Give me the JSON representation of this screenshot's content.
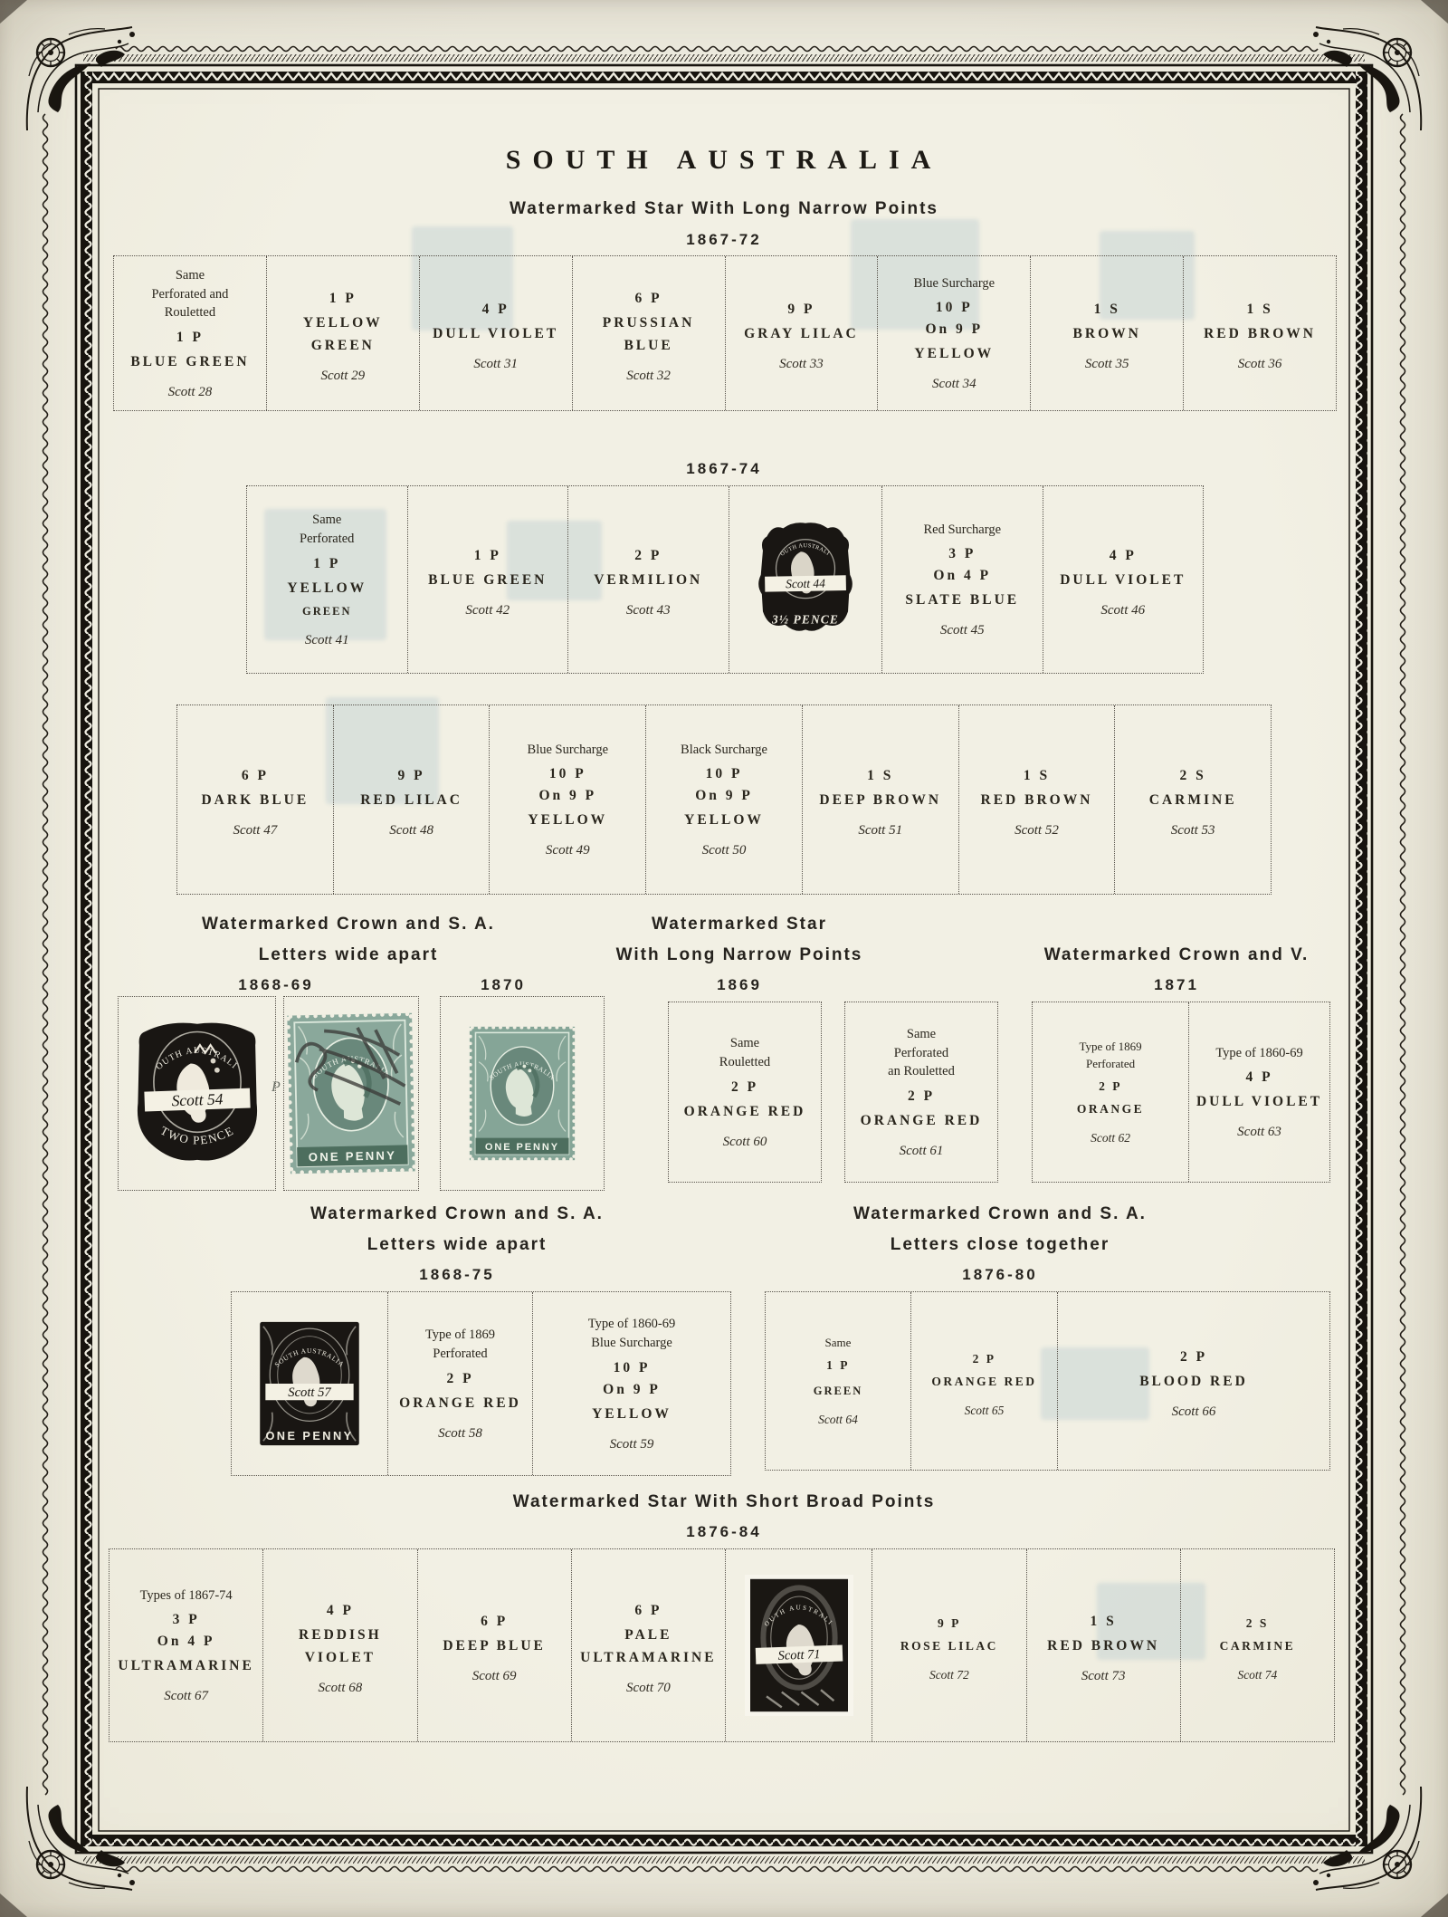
{
  "page": {
    "title": "SOUTH AUSTRALIA",
    "pencil_note": "P"
  },
  "sections": {
    "s1": {
      "heading": "Watermarked Star With Long Narrow Points",
      "years": "1867-72"
    },
    "s2": {
      "years": "1867-74"
    },
    "s3a": {
      "line1": "Watermarked Crown and S. A.",
      "line2": "Letters wide apart",
      "years": "1868-69",
      "years2": "1870"
    },
    "s3b": {
      "line1": "Watermarked Star",
      "line2": "With Long Narrow Points",
      "years": "1869"
    },
    "s3c": {
      "line1": "Watermarked Crown and V.",
      "years": "1871"
    },
    "s4a": {
      "line1": "Watermarked Crown and S. A.",
      "line2": "Letters wide apart",
      "years": "1868-75"
    },
    "s4b": {
      "line1": "Watermarked Crown and S. A.",
      "line2": "Letters close together",
      "years": "1876-80"
    },
    "s5": {
      "heading": "Watermarked Star With Short Broad Points",
      "years": "1876-84"
    }
  },
  "rows": {
    "row1": [
      {
        "lines": [
          {
            "k": "n",
            "t": "Same"
          },
          {
            "k": "n",
            "t": "Perforated and"
          },
          {
            "k": "n",
            "t": "Rouletted"
          },
          {
            "k": "d",
            "t": "1 P"
          },
          {
            "k": "c",
            "t": "BLUE GREEN"
          },
          {
            "k": "s",
            "t": "Scott 28"
          }
        ]
      },
      {
        "lines": [
          {
            "k": "d",
            "t": "1 P"
          },
          {
            "k": "c",
            "t": "YELLOW"
          },
          {
            "k": "c",
            "t": "GREEN"
          },
          {
            "k": "s",
            "t": "Scott 29"
          }
        ]
      },
      {
        "lines": [
          {
            "k": "d",
            "t": "4 P"
          },
          {
            "k": "c",
            "t": "DULL VIOLET"
          },
          {
            "k": "s",
            "t": "Scott 31"
          }
        ]
      },
      {
        "lines": [
          {
            "k": "d",
            "t": "6 P"
          },
          {
            "k": "c",
            "t": "PRUSSIAN"
          },
          {
            "k": "c",
            "t": "BLUE"
          },
          {
            "k": "s",
            "t": "Scott 32"
          }
        ]
      },
      {
        "lines": [
          {
            "k": "d",
            "t": "9 P"
          },
          {
            "k": "c",
            "t": "GRAY LILAC"
          },
          {
            "k": "s",
            "t": "Scott 33"
          }
        ]
      },
      {
        "lines": [
          {
            "k": "n",
            "t": "Blue Surcharge"
          },
          {
            "k": "d",
            "t": "10 P"
          },
          {
            "k": "d",
            "t": "On 9 P"
          },
          {
            "k": "c",
            "t": "YELLOW"
          },
          {
            "k": "s",
            "t": "Scott 34"
          }
        ]
      },
      {
        "lines": [
          {
            "k": "d",
            "t": "1 S"
          },
          {
            "k": "c",
            "t": "BROWN"
          },
          {
            "k": "s",
            "t": "Scott 35"
          }
        ]
      },
      {
        "lines": [
          {
            "k": "d",
            "t": "1 S"
          },
          {
            "k": "c",
            "t": "RED BROWN"
          },
          {
            "k": "s",
            "t": "Scott 36"
          }
        ]
      }
    ],
    "row2": [
      {
        "lines": [
          {
            "k": "n",
            "t": "Same"
          },
          {
            "k": "n",
            "t": "Perforated"
          },
          {
            "k": "d",
            "t": "1 P"
          },
          {
            "k": "c",
            "t": "YELLOW"
          },
          {
            "k": "sm",
            "t": "GREEN"
          },
          {
            "k": "s",
            "t": "Scott 41"
          }
        ]
      },
      {
        "lines": [
          {
            "k": "d",
            "t": "1 P"
          },
          {
            "k": "c",
            "t": "BLUE GREEN"
          },
          {
            "k": "s",
            "t": "Scott 42"
          }
        ]
      },
      {
        "lines": [
          {
            "k": "d",
            "t": "2 P"
          },
          {
            "k": "c",
            "t": "VERMILION"
          },
          {
            "k": "s",
            "t": "Scott 43"
          }
        ]
      },
      {
        "stamp": "scott44"
      },
      {
        "lines": [
          {
            "k": "n",
            "t": "Red Surcharge"
          },
          {
            "k": "d",
            "t": "3 P"
          },
          {
            "k": "d",
            "t": "On 4 P"
          },
          {
            "k": "c",
            "t": "SLATE BLUE"
          },
          {
            "k": "s",
            "t": "Scott 45"
          }
        ]
      },
      {
        "lines": [
          {
            "k": "d",
            "t": "4 P"
          },
          {
            "k": "c",
            "t": "DULL VIOLET"
          },
          {
            "k": "s",
            "t": "Scott 46"
          }
        ]
      }
    ],
    "row3": [
      {
        "lines": [
          {
            "k": "d",
            "t": "6 P"
          },
          {
            "k": "c",
            "t": "DARK BLUE"
          },
          {
            "k": "s",
            "t": "Scott 47"
          }
        ]
      },
      {
        "lines": [
          {
            "k": "d",
            "t": "9 P"
          },
          {
            "k": "c",
            "t": "RED LILAC"
          },
          {
            "k": "s",
            "t": "Scott 48"
          }
        ]
      },
      {
        "lines": [
          {
            "k": "n",
            "t": "Blue Surcharge"
          },
          {
            "k": "d",
            "t": "10 P"
          },
          {
            "k": "d",
            "t": "On 9 P"
          },
          {
            "k": "c",
            "t": "YELLOW"
          },
          {
            "k": "s",
            "t": "Scott 49"
          }
        ]
      },
      {
        "lines": [
          {
            "k": "n",
            "t": "Black Surcharge"
          },
          {
            "k": "d",
            "t": "10 P"
          },
          {
            "k": "d",
            "t": "On 9 P"
          },
          {
            "k": "c",
            "t": "YELLOW"
          },
          {
            "k": "s",
            "t": "Scott 50"
          }
        ]
      },
      {
        "lines": [
          {
            "k": "d",
            "t": "1 S"
          },
          {
            "k": "c",
            "t": "DEEP BROWN"
          },
          {
            "k": "s",
            "t": "Scott 51"
          }
        ]
      },
      {
        "lines": [
          {
            "k": "d",
            "t": "1 S"
          },
          {
            "k": "c",
            "t": "RED BROWN"
          },
          {
            "k": "s",
            "t": "Scott 52"
          }
        ]
      },
      {
        "lines": [
          {
            "k": "d",
            "t": "2 S"
          },
          {
            "k": "c",
            "t": "CARMINE"
          },
          {
            "k": "s",
            "t": "Scott 53"
          }
        ]
      }
    ],
    "rowA": [
      {
        "stamp": "scott54"
      },
      {
        "stamp": "green_cancelled"
      },
      {
        "stamp": "green_clean"
      }
    ],
    "rowB": [
      {
        "lines": [
          {
            "k": "n",
            "t": "Same"
          },
          {
            "k": "n",
            "t": "Rouletted"
          },
          {
            "k": "d",
            "t": "2 P"
          },
          {
            "k": "c",
            "t": "ORANGE RED"
          },
          {
            "k": "s",
            "t": "Scott 60"
          }
        ]
      },
      {
        "lines": [
          {
            "k": "n",
            "t": "Same"
          },
          {
            "k": "n",
            "t": "Perforated"
          },
          {
            "k": "n",
            "t": "an Rouletted"
          },
          {
            "k": "d",
            "t": "2 P"
          },
          {
            "k": "c",
            "t": "ORANGE RED"
          },
          {
            "k": "s",
            "t": "Scott 61"
          }
        ]
      }
    ],
    "rowC": [
      {
        "small": true,
        "lines": [
          {
            "k": "n",
            "t": "Type of 1869"
          },
          {
            "k": "n",
            "t": "Perforated"
          },
          {
            "k": "d",
            "t": "2 P"
          },
          {
            "k": "c",
            "t": "ORANGE"
          },
          {
            "k": "s",
            "t": "Scott 62"
          }
        ]
      },
      {
        "lines": [
          {
            "k": "n",
            "t": "Type of 1860-69"
          },
          {
            "k": "d",
            "t": "4 P"
          },
          {
            "k": "c",
            "t": "DULL VIOLET"
          },
          {
            "k": "s",
            "t": "Scott 63"
          }
        ]
      }
    ],
    "rowD": [
      {
        "stamp": "scott57"
      },
      {
        "lines": [
          {
            "k": "n",
            "t": "Type of 1869"
          },
          {
            "k": "n",
            "t": "Perforated"
          },
          {
            "k": "d",
            "t": "2 P"
          },
          {
            "k": "c",
            "t": "ORANGE RED"
          },
          {
            "k": "s",
            "t": "Scott 58"
          }
        ]
      },
      {
        "lines": [
          {
            "k": "n",
            "t": "Type of 1860-69"
          },
          {
            "k": "n",
            "t": "Blue Surcharge"
          },
          {
            "k": "d",
            "t": "10 P"
          },
          {
            "k": "d",
            "t": "On 9 P"
          },
          {
            "k": "c",
            "t": "YELLOW"
          },
          {
            "k": "s",
            "t": "Scott 59"
          }
        ]
      }
    ],
    "rowE": [
      {
        "small": true,
        "lines": [
          {
            "k": "n",
            "t": "Same"
          },
          {
            "k": "d",
            "t": "1 P"
          },
          {
            "k": "sm",
            "t": "GREEN"
          },
          {
            "k": "s",
            "t": "Scott 64"
          }
        ]
      },
      {
        "small": true,
        "lines": [
          {
            "k": "d",
            "t": "2 P"
          },
          {
            "k": "c",
            "t": "ORANGE RED"
          },
          {
            "k": "s",
            "t": "Scott 65"
          }
        ]
      },
      {
        "lines": [
          {
            "k": "d",
            "t": "2 P"
          },
          {
            "k": "c",
            "t": "BLOOD RED"
          },
          {
            "k": "s",
            "t": "Scott 66"
          }
        ]
      }
    ],
    "row5": [
      {
        "lines": [
          {
            "k": "n",
            "t": "Types of 1867-74"
          },
          {
            "k": "d",
            "t": "3 P"
          },
          {
            "k": "d",
            "t": "On 4 P"
          },
          {
            "k": "c",
            "t": "ULTRAMARINE"
          },
          {
            "k": "s",
            "t": "Scott 67"
          }
        ]
      },
      {
        "lines": [
          {
            "k": "d",
            "t": "4 P"
          },
          {
            "k": "c",
            "t": "REDDISH"
          },
          {
            "k": "c",
            "t": "VIOLET"
          },
          {
            "k": "s",
            "t": "Scott 68"
          }
        ]
      },
      {
        "lines": [
          {
            "k": "d",
            "t": "6 P"
          },
          {
            "k": "c",
            "t": "DEEP BLUE"
          },
          {
            "k": "s",
            "t": "Scott 69"
          }
        ]
      },
      {
        "lines": [
          {
            "k": "d",
            "t": "6 P"
          },
          {
            "k": "c",
            "t": "PALE"
          },
          {
            "k": "c",
            "t": "ULTRAMARINE"
          },
          {
            "k": "s",
            "t": "Scott 70"
          }
        ]
      },
      {
        "stamp": "scott71"
      },
      {
        "small": true,
        "lines": [
          {
            "k": "d",
            "t": "9 P"
          },
          {
            "k": "c",
            "t": "ROSE LILAC"
          },
          {
            "k": "s",
            "t": "Scott 72"
          }
        ]
      },
      {
        "lines": [
          {
            "k": "d",
            "t": "1 S"
          },
          {
            "k": "c",
            "t": "RED BROWN"
          },
          {
            "k": "s",
            "t": "Scott 73"
          }
        ]
      },
      {
        "small": true,
        "lines": [
          {
            "k": "d",
            "t": "2 S"
          },
          {
            "k": "c",
            "t": "CARMINE"
          },
          {
            "k": "s",
            "t": "Scott 74"
          }
        ]
      }
    ]
  },
  "stamps": {
    "scott44": {
      "style": "black-arch",
      "top": "SOUTH AUSTRALIA",
      "caption": "Scott 44",
      "bottom": "3½ PENCE"
    },
    "scott54": {
      "style": "black-shield",
      "top": "SOUTH AUSTRALIA",
      "caption": "Scott 54",
      "bottom": "TWO PENCE"
    },
    "scott57": {
      "style": "black-rect",
      "top": "SOUTH AUSTRALIA",
      "caption": "Scott 57",
      "bottom": "ONE PENNY"
    },
    "scott71": {
      "style": "black-tall",
      "top": "SOUTH AUSTRALIA",
      "caption": "Scott 71",
      "bottom": ""
    },
    "green_cancelled": {
      "style": "green",
      "top": "SOUTH AUSTRALIA",
      "bottom": "ONE PENNY",
      "cancelled": true
    },
    "green_clean": {
      "style": "green",
      "top": "SOUTH AUSTRALIA",
      "bottom": "ONE PENNY",
      "cancelled": false
    }
  }
}
